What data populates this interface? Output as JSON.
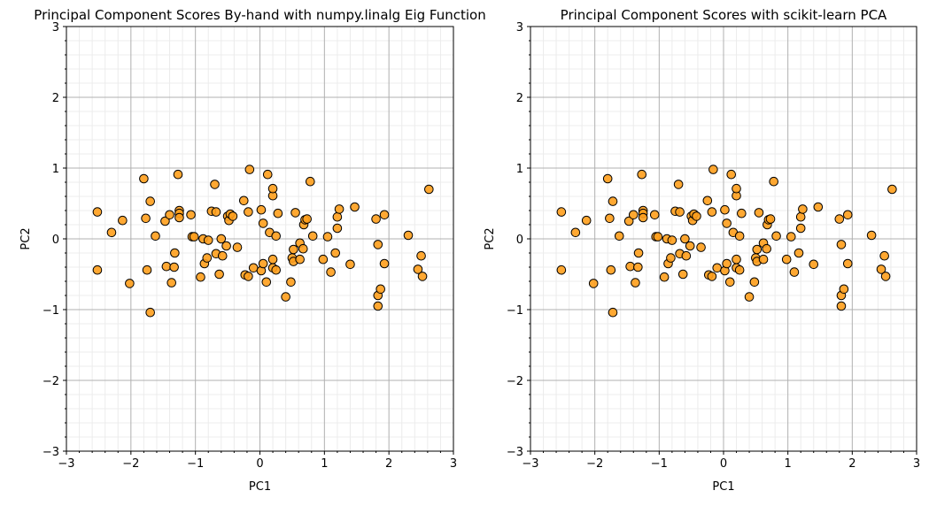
{
  "chart_data": [
    {
      "type": "scatter",
      "title": "Principal Component Scores By-hand with numpy.linalg Eig Function",
      "xlabel": "PC1",
      "ylabel": "PC2",
      "xlim": [
        -3,
        3
      ],
      "ylim": [
        -3,
        3
      ],
      "xticks": [
        "−3",
        "−2",
        "−1",
        "0",
        "1",
        "2",
        "3"
      ],
      "yticks": [
        "−3",
        "−2",
        "−1",
        "0",
        "1",
        "2",
        "3"
      ],
      "grid": "major and minor",
      "marker_color": "#ff9f1c",
      "edge_color": "#000000",
      "points": [
        [
          -2.52,
          0.38
        ],
        [
          -2.52,
          -0.44
        ],
        [
          -2.3,
          0.09
        ],
        [
          -2.13,
          0.26
        ],
        [
          -2.02,
          -0.63
        ],
        [
          -1.8,
          0.85
        ],
        [
          -1.77,
          0.29
        ],
        [
          -1.75,
          -0.44
        ],
        [
          -1.7,
          0.53
        ],
        [
          -1.7,
          -1.04
        ],
        [
          -1.62,
          0.04
        ],
        [
          -1.47,
          0.25
        ],
        [
          -1.45,
          -0.39
        ],
        [
          -1.4,
          0.34
        ],
        [
          -1.37,
          -0.62
        ],
        [
          -1.33,
          -0.4
        ],
        [
          -1.32,
          -0.2
        ],
        [
          -1.27,
          0.91
        ],
        [
          -1.25,
          0.4
        ],
        [
          -1.25,
          0.36
        ],
        [
          -1.25,
          0.3
        ],
        [
          -1.07,
          0.34
        ],
        [
          -1.05,
          0.03
        ],
        [
          -1.02,
          0.03
        ],
        [
          -0.92,
          -0.54
        ],
        [
          -0.88,
          0.0
        ],
        [
          -0.86,
          -0.35
        ],
        [
          -0.82,
          -0.27
        ],
        [
          -0.8,
          -0.02
        ],
        [
          -0.75,
          0.39
        ],
        [
          -0.7,
          0.77
        ],
        [
          -0.68,
          0.38
        ],
        [
          -0.68,
          -0.21
        ],
        [
          -0.63,
          -0.5
        ],
        [
          -0.6,
          0.0
        ],
        [
          -0.58,
          -0.24
        ],
        [
          -0.52,
          -0.1
        ],
        [
          -0.5,
          0.32
        ],
        [
          -0.48,
          0.26
        ],
        [
          -0.46,
          0.35
        ],
        [
          -0.42,
          0.32
        ],
        [
          -0.35,
          -0.12
        ],
        [
          -0.25,
          0.54
        ],
        [
          -0.23,
          -0.51
        ],
        [
          -0.18,
          -0.53
        ],
        [
          -0.16,
          0.98
        ],
        [
          -0.18,
          0.38
        ],
        [
          -0.1,
          -0.41
        ],
        [
          0.02,
          0.41
        ],
        [
          0.02,
          -0.45
        ],
        [
          0.05,
          -0.35
        ],
        [
          0.05,
          0.22
        ],
        [
          0.1,
          -0.61
        ],
        [
          0.12,
          0.91
        ],
        [
          0.15,
          0.09
        ],
        [
          0.2,
          0.61
        ],
        [
          0.2,
          0.71
        ],
        [
          0.2,
          -0.29
        ],
        [
          0.2,
          -0.41
        ],
        [
          0.25,
          0.04
        ],
        [
          0.25,
          -0.44
        ],
        [
          0.28,
          0.36
        ],
        [
          0.4,
          -0.82
        ],
        [
          0.48,
          -0.61
        ],
        [
          0.5,
          -0.27
        ],
        [
          0.52,
          -0.32
        ],
        [
          0.52,
          -0.15
        ],
        [
          0.55,
          0.37
        ],
        [
          0.62,
          -0.06
        ],
        [
          0.62,
          -0.29
        ],
        [
          0.67,
          -0.14
        ],
        [
          0.68,
          0.2
        ],
        [
          0.7,
          0.27
        ],
        [
          0.73,
          0.28
        ],
        [
          0.78,
          0.81
        ],
        [
          0.82,
          0.04
        ],
        [
          0.98,
          -0.29
        ],
        [
          1.05,
          0.03
        ],
        [
          1.1,
          -0.47
        ],
        [
          1.17,
          -0.2
        ],
        [
          1.2,
          0.15
        ],
        [
          1.2,
          0.31
        ],
        [
          1.23,
          0.42
        ],
        [
          1.4,
          -0.36
        ],
        [
          1.47,
          0.45
        ],
        [
          1.8,
          0.28
        ],
        [
          1.83,
          -0.08
        ],
        [
          1.83,
          -0.8
        ],
        [
          1.83,
          -0.95
        ],
        [
          1.87,
          -0.71
        ],
        [
          1.93,
          -0.35
        ],
        [
          1.93,
          0.34
        ],
        [
          2.3,
          0.05
        ],
        [
          2.45,
          -0.43
        ],
        [
          2.5,
          -0.24
        ],
        [
          2.52,
          -0.53
        ],
        [
          2.62,
          0.7
        ]
      ]
    },
    {
      "type": "scatter",
      "title": "Principal Component Scores with scikit-learn PCA",
      "xlabel": "PC1",
      "ylabel": "PC2",
      "xlim": [
        -3,
        3
      ],
      "ylim": [
        -3,
        3
      ],
      "xticks": [
        "−3",
        "−2",
        "−1",
        "0",
        "1",
        "2",
        "3"
      ],
      "yticks": [
        "−3",
        "−2",
        "−1",
        "0",
        "1",
        "2",
        "3"
      ],
      "grid": "major and minor",
      "marker_color": "#ff9f1c",
      "edge_color": "#000000",
      "points": [
        [
          -2.52,
          0.38
        ],
        [
          -2.52,
          -0.44
        ],
        [
          -2.3,
          0.09
        ],
        [
          -2.13,
          0.26
        ],
        [
          -2.02,
          -0.63
        ],
        [
          -1.8,
          0.85
        ],
        [
          -1.77,
          0.29
        ],
        [
          -1.75,
          -0.44
        ],
        [
          -1.72,
          0.53
        ],
        [
          -1.72,
          -1.04
        ],
        [
          -1.62,
          0.04
        ],
        [
          -1.47,
          0.25
        ],
        [
          -1.45,
          -0.39
        ],
        [
          -1.4,
          0.34
        ],
        [
          -1.37,
          -0.62
        ],
        [
          -1.33,
          -0.4
        ],
        [
          -1.32,
          -0.2
        ],
        [
          -1.27,
          0.91
        ],
        [
          -1.25,
          0.4
        ],
        [
          -1.25,
          0.36
        ],
        [
          -1.25,
          0.3
        ],
        [
          -1.07,
          0.34
        ],
        [
          -1.05,
          0.03
        ],
        [
          -1.02,
          0.03
        ],
        [
          -0.92,
          -0.54
        ],
        [
          -0.88,
          0.0
        ],
        [
          -0.86,
          -0.35
        ],
        [
          -0.82,
          -0.27
        ],
        [
          -0.8,
          -0.02
        ],
        [
          -0.75,
          0.39
        ],
        [
          -0.7,
          0.77
        ],
        [
          -0.68,
          0.38
        ],
        [
          -0.68,
          -0.21
        ],
        [
          -0.63,
          -0.5
        ],
        [
          -0.6,
          0.0
        ],
        [
          -0.58,
          -0.24
        ],
        [
          -0.52,
          -0.1
        ],
        [
          -0.5,
          0.32
        ],
        [
          -0.48,
          0.26
        ],
        [
          -0.46,
          0.35
        ],
        [
          -0.42,
          0.32
        ],
        [
          -0.35,
          -0.12
        ],
        [
          -0.25,
          0.54
        ],
        [
          -0.23,
          -0.51
        ],
        [
          -0.18,
          -0.53
        ],
        [
          -0.16,
          0.98
        ],
        [
          -0.18,
          0.38
        ],
        [
          -0.1,
          -0.41
        ],
        [
          0.02,
          0.41
        ],
        [
          0.02,
          -0.45
        ],
        [
          0.05,
          -0.35
        ],
        [
          0.05,
          0.22
        ],
        [
          0.1,
          -0.61
        ],
        [
          0.12,
          0.91
        ],
        [
          0.15,
          0.09
        ],
        [
          0.2,
          0.61
        ],
        [
          0.2,
          0.71
        ],
        [
          0.2,
          -0.29
        ],
        [
          0.2,
          -0.41
        ],
        [
          0.25,
          0.04
        ],
        [
          0.25,
          -0.44
        ],
        [
          0.28,
          0.36
        ],
        [
          0.4,
          -0.82
        ],
        [
          0.48,
          -0.61
        ],
        [
          0.5,
          -0.27
        ],
        [
          0.52,
          -0.32
        ],
        [
          0.52,
          -0.15
        ],
        [
          0.55,
          0.37
        ],
        [
          0.62,
          -0.06
        ],
        [
          0.62,
          -0.29
        ],
        [
          0.67,
          -0.14
        ],
        [
          0.68,
          0.2
        ],
        [
          0.7,
          0.27
        ],
        [
          0.73,
          0.28
        ],
        [
          0.78,
          0.81
        ],
        [
          0.82,
          0.04
        ],
        [
          0.98,
          -0.29
        ],
        [
          1.05,
          0.03
        ],
        [
          1.1,
          -0.47
        ],
        [
          1.17,
          -0.2
        ],
        [
          1.2,
          0.15
        ],
        [
          1.2,
          0.31
        ],
        [
          1.23,
          0.42
        ],
        [
          1.4,
          -0.36
        ],
        [
          1.47,
          0.45
        ],
        [
          1.8,
          0.28
        ],
        [
          1.83,
          -0.08
        ],
        [
          1.83,
          -0.8
        ],
        [
          1.83,
          -0.95
        ],
        [
          1.87,
          -0.71
        ],
        [
          1.93,
          -0.35
        ],
        [
          1.93,
          0.34
        ],
        [
          2.3,
          0.05
        ],
        [
          2.45,
          -0.43
        ],
        [
          2.5,
          -0.24
        ],
        [
          2.52,
          -0.53
        ],
        [
          2.62,
          0.7
        ]
      ]
    }
  ]
}
